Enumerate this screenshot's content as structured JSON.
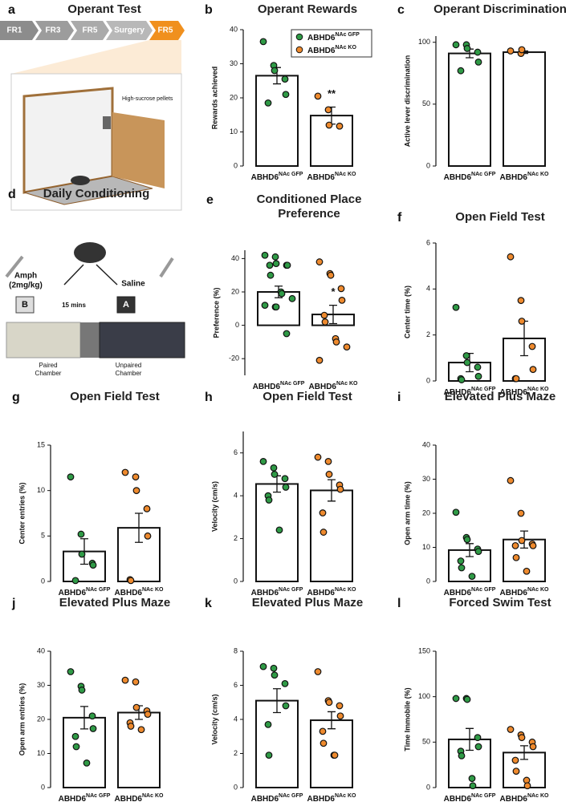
{
  "operant_test": {
    "panel": "a",
    "title": "Operant Test",
    "steps": [
      "FR1",
      "FR3",
      "FR5",
      "Surgery",
      "FR5"
    ],
    "label": "High-sucrose pellets"
  },
  "daily_conditioning": {
    "panel": "d",
    "title": "Daily Conditioning",
    "drug": "Amph",
    "dose": "(2mg/kg)",
    "control": "Saline",
    "paired_box": "B",
    "unpaired_box": "A",
    "interval": "15 mins",
    "paired_label": [
      "Paired",
      "Chamber"
    ],
    "unpaired_label": [
      "Unpaired",
      "Chamber"
    ]
  },
  "chart_data": [
    {
      "panel": "b",
      "type": "bar",
      "title": "Operant Rewards",
      "ylabel": "Rewards achieved",
      "categories": [
        {
          "name": "ABHD6",
          "sup": "NAc GFP"
        },
        {
          "name": "ABHD6",
          "sup": "NAc KO"
        }
      ],
      "colors": [
        "#2f9a46",
        "#ee8a2e"
      ],
      "values": [
        26.5,
        14.8
      ],
      "errors": [
        2.4,
        2.5
      ],
      "points": [
        [
          36.5,
          29.5,
          28,
          25.5,
          21,
          18.5
        ],
        [
          20.5,
          16.5,
          12,
          11.7
        ]
      ],
      "significance": [
        null,
        "**"
      ],
      "ylim": [
        0,
        40
      ],
      "yticks": [
        0,
        10,
        20,
        30,
        40
      ],
      "legend": "upper right"
    },
    {
      "panel": "c",
      "type": "bar",
      "title": "Operant Discrimination",
      "ylabel": "Active lever discrimination",
      "categories": [
        {
          "name": "ABHD6",
          "sup": "NAc GFP"
        },
        {
          "name": "ABHD6",
          "sup": "NAc KO"
        }
      ],
      "colors": [
        "#2f9a46",
        "#ee8a2e"
      ],
      "values": [
        91,
        92
      ],
      "errors": [
        3.5,
        1
      ],
      "points": [
        [
          98,
          98,
          95,
          92,
          84,
          77
        ],
        [
          93,
          91,
          94
        ]
      ],
      "ylim": [
        0,
        105
      ],
      "yticks": [
        0,
        50,
        100
      ]
    },
    {
      "panel": "e",
      "type": "bar",
      "title": "Conditioned Place Preference",
      "ylabel": "Preference (%)",
      "categories": [
        {
          "name": "ABHD6",
          "sup": "NAc GFP"
        },
        {
          "name": "ABHD6",
          "sup": "NAc KO"
        }
      ],
      "colors": [
        "#2f9a46",
        "#ee8a2e"
      ],
      "values": [
        20,
        6.5
      ],
      "errors": [
        3.5,
        5.5
      ],
      "points": [
        [
          42,
          41,
          37,
          36,
          36,
          36,
          30,
          20,
          19,
          16,
          12,
          11,
          11,
          -5
        ],
        [
          38,
          31,
          30,
          22,
          15,
          6,
          2,
          -8,
          -10,
          -13,
          -21
        ]
      ],
      "significance": [
        null,
        "*"
      ],
      "ylim": [
        -30,
        45
      ],
      "yticks": [
        -20,
        0,
        20,
        40
      ]
    },
    {
      "panel": "f",
      "type": "bar",
      "title": "Open Field Test",
      "ylabel": "Center time (%)",
      "categories": [
        {
          "name": "ABHD6",
          "sup": "NAc GFP"
        },
        {
          "name": "ABHD6",
          "sup": "NAc KO"
        }
      ],
      "colors": [
        "#2f9a46",
        "#ee8a2e"
      ],
      "values": [
        0.8,
        1.85
      ],
      "errors": [
        0.4,
        0.75
      ],
      "points": [
        [
          3.2,
          1.1,
          0.8,
          0.6,
          0.2,
          0.1,
          0.05
        ],
        [
          5.4,
          3.5,
          2.6,
          1.5,
          0.5,
          0.1,
          0.1
        ]
      ],
      "ylim": [
        0,
        6
      ],
      "yticks": [
        0,
        2,
        4,
        6
      ]
    },
    {
      "panel": "g",
      "type": "bar",
      "title": "Open Field Test",
      "ylabel": "Center entries (%)",
      "categories": [
        {
          "name": "ABHD6",
          "sup": "NAc GFP"
        },
        {
          "name": "ABHD6",
          "sup": "NAc KO"
        }
      ],
      "colors": [
        "#2f9a46",
        "#ee8a2e"
      ],
      "values": [
        3.3,
        5.9
      ],
      "errors": [
        1.4,
        1.6
      ],
      "points": [
        [
          11.5,
          5.2,
          3,
          2,
          1.8,
          0.1
        ],
        [
          12,
          11.5,
          10,
          8,
          5,
          0.2,
          0.1
        ]
      ],
      "ylim": [
        0,
        15
      ],
      "yticks": [
        0,
        5,
        10,
        15
      ]
    },
    {
      "panel": "h",
      "type": "bar",
      "title": "Open Field Test",
      "ylabel": "Velocity (cm/s)",
      "categories": [
        {
          "name": "ABHD6",
          "sup": "NAc GFP"
        },
        {
          "name": "ABHD6",
          "sup": "NAc KO"
        }
      ],
      "colors": [
        "#2f9a46",
        "#ee8a2e"
      ],
      "values": [
        4.55,
        4.25
      ],
      "errors": [
        0.38,
        0.5
      ],
      "points": [
        [
          5.6,
          5.3,
          5.0,
          4.8,
          4.4,
          4.0,
          3.8,
          2.4
        ],
        [
          5.8,
          5.6,
          5.0,
          4.5,
          4.3,
          3.2,
          2.3
        ]
      ],
      "ylim": [
        0,
        7
      ],
      "yticks": [
        0,
        2,
        4,
        6
      ]
    },
    {
      "panel": "i",
      "type": "bar",
      "title": "Elevated Plus Maze",
      "ylabel": "Open arm time (%)",
      "categories": [
        {
          "name": "ABHD6",
          "sup": "NAc GFP"
        },
        {
          "name": "ABHD6",
          "sup": "NAc KO"
        }
      ],
      "colors": [
        "#2f9a46",
        "#ee8a2e"
      ],
      "values": [
        9.2,
        12.3
      ],
      "errors": [
        1.9,
        2.5
      ],
      "points": [
        [
          20.3,
          12.9,
          12.3,
          9.5,
          8.8,
          6,
          4,
          1.5
        ],
        [
          29.6,
          20,
          12,
          11,
          10.5,
          10.5,
          7,
          3
        ]
      ],
      "ylim": [
        0,
        40
      ],
      "yticks": [
        0,
        10,
        20,
        30,
        40
      ]
    },
    {
      "panel": "j",
      "type": "bar",
      "title": "Elevated Plus Maze",
      "ylabel": "Open arm entries (%)",
      "categories": [
        {
          "name": "ABHD6",
          "sup": "NAc GFP"
        },
        {
          "name": "ABHD6",
          "sup": "NAc KO"
        }
      ],
      "colors": [
        "#2f9a46",
        "#ee8a2e"
      ],
      "values": [
        20.5,
        22
      ],
      "errors": [
        3.3,
        2
      ],
      "points": [
        [
          34,
          29.7,
          28.6,
          21,
          17.3,
          15,
          12,
          7.2
        ],
        [
          31.5,
          31,
          23.5,
          22.5,
          21.5,
          19,
          18,
          17
        ]
      ],
      "ylim": [
        0,
        40
      ],
      "yticks": [
        0,
        10,
        20,
        30,
        40
      ]
    },
    {
      "panel": "k",
      "type": "bar",
      "title": "Elevated Plus Maze",
      "ylabel": "Velocity (cm/s)",
      "categories": [
        {
          "name": "ABHD6",
          "sup": "NAc GFP"
        },
        {
          "name": "ABHD6",
          "sup": "NAc KO"
        }
      ],
      "colors": [
        "#2f9a46",
        "#ee8a2e"
      ],
      "values": [
        5.1,
        3.95
      ],
      "errors": [
        0.7,
        0.5
      ],
      "points": [
        [
          7.1,
          7.0,
          6.6,
          6.1,
          4.8,
          3.7,
          1.9
        ],
        [
          6.8,
          5.1,
          5.0,
          4.8,
          4.2,
          3.3,
          2.6,
          1.9,
          1.9
        ]
      ],
      "ylim": [
        0,
        8
      ],
      "yticks": [
        0,
        2,
        4,
        6,
        8
      ]
    },
    {
      "panel": "l",
      "type": "bar",
      "title": "Forced Swim Test",
      "ylabel": "Time Immobile (%)",
      "categories": [
        {
          "name": "ABHD6",
          "sup": "NAc GFP"
        },
        {
          "name": "ABHD6",
          "sup": "NAc KO"
        }
      ],
      "colors": [
        "#2f9a46",
        "#ee8a2e"
      ],
      "values": [
        53,
        38.5
      ],
      "errors": [
        12,
        7.5
      ],
      "points": [
        [
          98,
          98,
          97,
          55,
          45,
          40,
          35,
          10,
          2
        ],
        [
          64,
          58,
          55,
          50,
          45,
          30,
          18,
          8,
          2
        ]
      ],
      "ylim": [
        0,
        150
      ],
      "yticks": [
        0,
        50,
        100,
        150
      ]
    }
  ]
}
